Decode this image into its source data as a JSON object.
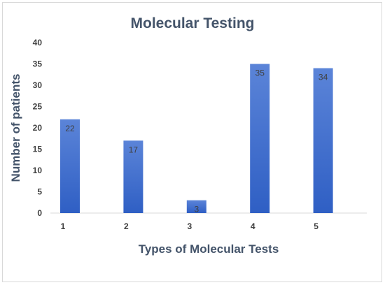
{
  "chart_data": {
    "type": "bar",
    "title": "Molecular Testing",
    "xlabel": "Types of Molecular Tests",
    "ylabel": "Number of patients",
    "categories": [
      "1",
      "2",
      "3",
      "4",
      "5"
    ],
    "values": [
      22,
      17,
      3,
      35,
      34
    ],
    "data_labels": [
      "22",
      "17",
      "3",
      "35",
      "34"
    ],
    "ylim": [
      0,
      40
    ],
    "yticks": [
      "0",
      "5",
      "10",
      "15",
      "20",
      "25",
      "30",
      "35",
      "40"
    ],
    "grid": false,
    "legend": "none",
    "bar_color_top": "#5b84d8",
    "bar_color_bottom": "#2f5fc4"
  }
}
